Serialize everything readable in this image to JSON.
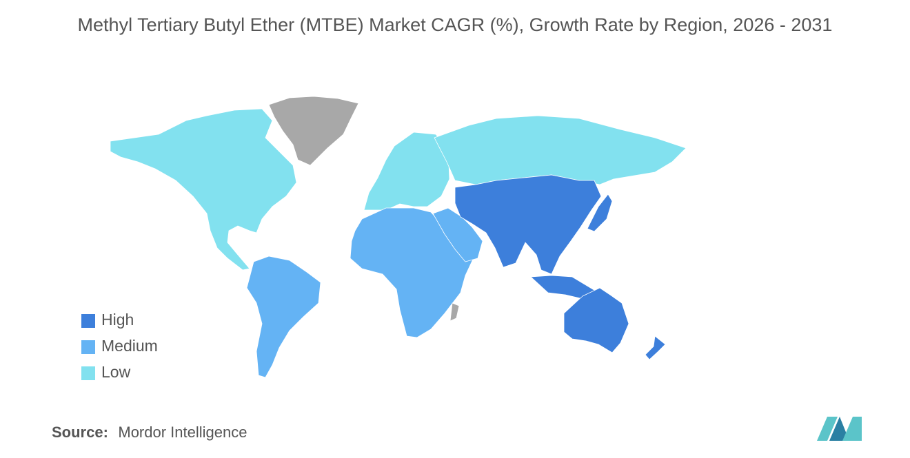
{
  "title": "Methyl Tertiary Butyl Ether (MTBE) Market CAGR (%), Growth Rate by Region, 2026 - 2031",
  "legend": [
    {
      "label": "High",
      "color": "#3d7fdb"
    },
    {
      "label": "Medium",
      "color": "#64b3f4"
    },
    {
      "label": "Low",
      "color": "#82e1ef"
    }
  ],
  "source": {
    "key": "Source:",
    "value": "Mordor Intelligence"
  }
}
